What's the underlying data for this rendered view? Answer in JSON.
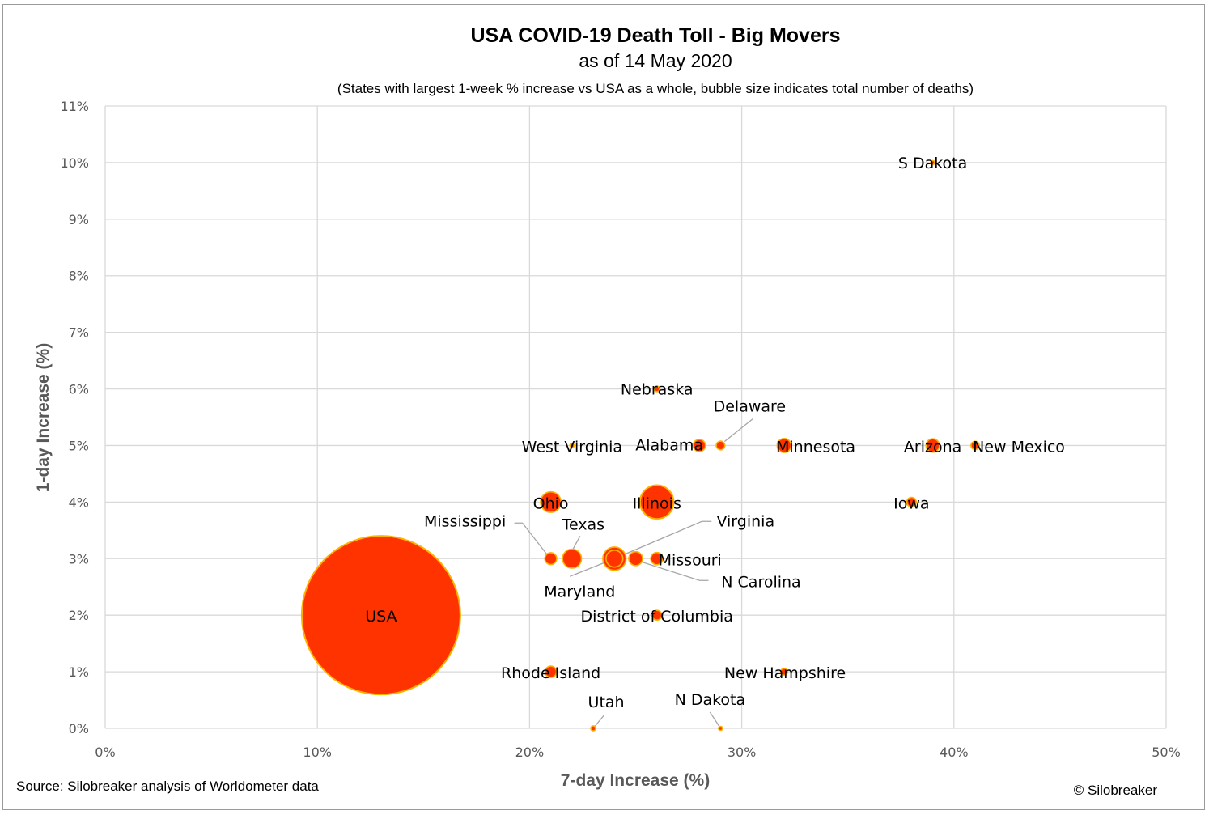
{
  "chart_data": {
    "type": "bubble",
    "title": "USA COVID-19 Death Toll - Big Movers",
    "subtitle": "as of 14 May 2020",
    "note": "(States with largest 1-week % increase vs USA as a whole, bubble size indicates total number of deaths)",
    "xlabel": "7-day Increase (%)",
    "ylabel": "1-day Increase (%)",
    "xlim": [
      0,
      50
    ],
    "ylim": [
      0,
      11
    ],
    "x_ticks": [
      "0%",
      "10%",
      "20%",
      "30%",
      "40%",
      "50%"
    ],
    "y_ticks": [
      "0%",
      "1%",
      "2%",
      "3%",
      "4%",
      "5%",
      "6%",
      "7%",
      "8%",
      "9%",
      "10%",
      "11%"
    ],
    "grid": true,
    "legend": "none",
    "colors": {
      "bubble_fill": "#ff3300",
      "bubble_edge": "#ffb300",
      "grid": "#d9d9d9",
      "axis_text": "#595959"
    },
    "points": [
      {
        "label": "USA",
        "x": 13,
        "y": 2,
        "size": 84000
      },
      {
        "label": "S Dakota",
        "x": 39,
        "y": 10,
        "size": 40
      },
      {
        "label": "Nebraska",
        "x": 26,
        "y": 6,
        "size": 100
      },
      {
        "label": "Delaware",
        "x": 29,
        "y": 5,
        "size": 250
      },
      {
        "label": "West Virginia",
        "x": 22,
        "y": 5,
        "size": 60
      },
      {
        "label": "Alabama",
        "x": 28,
        "y": 5,
        "size": 500
      },
      {
        "label": "Minnesota",
        "x": 32,
        "y": 5,
        "size": 650
      },
      {
        "label": "Arizona",
        "x": 39,
        "y": 5,
        "size": 600
      },
      {
        "label": "New Mexico",
        "x": 41,
        "y": 5,
        "size": 230
      },
      {
        "label": "Ohio",
        "x": 21,
        "y": 4,
        "size": 1400
      },
      {
        "label": "Illinois",
        "x": 26,
        "y": 4,
        "size": 3800
      },
      {
        "label": "Iowa",
        "x": 38,
        "y": 4,
        "size": 300
      },
      {
        "label": "Mississippi",
        "x": 21,
        "y": 3,
        "size": 470
      },
      {
        "label": "Texas",
        "x": 22,
        "y": 3,
        "size": 1200
      },
      {
        "label": "Virginia",
        "x": 24,
        "y": 3,
        "size": 950
      },
      {
        "label": "Maryland",
        "x": 24,
        "y": 3,
        "size": 1800
      },
      {
        "label": "Missouri",
        "x": 26,
        "y": 3,
        "size": 500
      },
      {
        "label": "N Carolina",
        "x": 25,
        "y": 3,
        "size": 640
      },
      {
        "label": "District of Columbia",
        "x": 26,
        "y": 2,
        "size": 320
      },
      {
        "label": "Rhode Island",
        "x": 21,
        "y": 1,
        "size": 430
      },
      {
        "label": "New Hampshire",
        "x": 32,
        "y": 1,
        "size": 160
      },
      {
        "label": "Utah",
        "x": 23,
        "y": 0,
        "size": 80
      },
      {
        "label": "N Dakota",
        "x": 29,
        "y": 0,
        "size": 50
      }
    ]
  },
  "footer": {
    "source": "Source: Silobreaker analysis of Worldometer data",
    "copyright": "© Silobreaker"
  }
}
